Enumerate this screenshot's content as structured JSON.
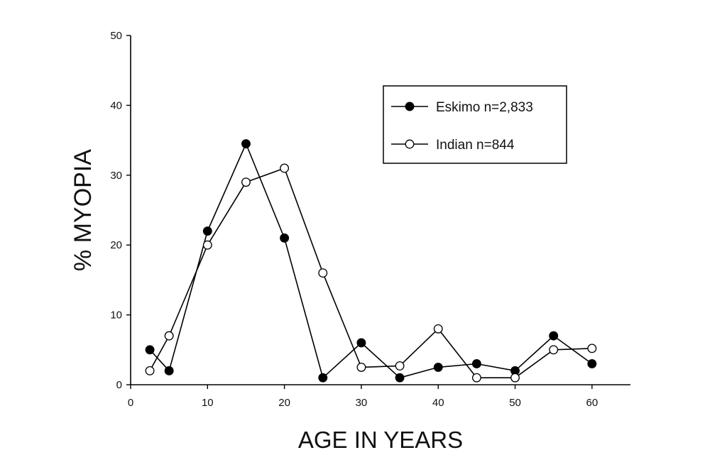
{
  "chart_data": {
    "type": "line",
    "xlabel": "AGE IN YEARS",
    "ylabel": "% MYOPIA",
    "xlim": [
      0,
      65
    ],
    "ylim": [
      0,
      50
    ],
    "xticks": [
      "0",
      "10",
      "20",
      "30",
      "40",
      "50",
      "60"
    ],
    "yticks": [
      "0",
      "10",
      "20",
      "30",
      "40",
      "50"
    ],
    "grid": false,
    "legend_position": "top-right",
    "series": [
      {
        "name": "Eskimo n=2,833",
        "marker": "filled-circle",
        "color": "#000000",
        "x": [
          2.5,
          5,
          10,
          15,
          20,
          25,
          30,
          35,
          40,
          45,
          50,
          55,
          60
        ],
        "y": [
          5,
          2,
          22,
          34.5,
          21,
          1,
          6,
          1,
          2.5,
          3,
          2,
          7,
          3
        ]
      },
      {
        "name": "Indian n=844",
        "marker": "open-circle",
        "color": "#000000",
        "x": [
          2.5,
          5,
          10,
          15,
          20,
          25,
          30,
          35,
          40,
          45,
          50,
          55,
          60
        ],
        "y": [
          2,
          7,
          20,
          29,
          31,
          16,
          2.5,
          2.7,
          8,
          1,
          1,
          5,
          5.2
        ]
      }
    ]
  }
}
